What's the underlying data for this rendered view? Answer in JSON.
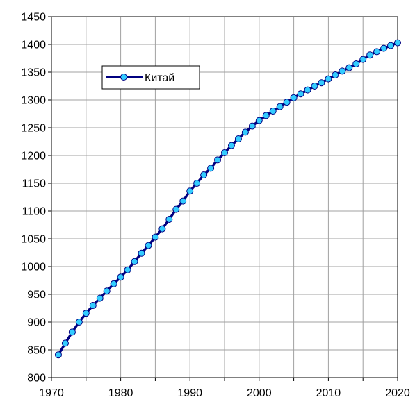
{
  "chart_data": {
    "type": "line",
    "title": "",
    "xlabel": "",
    "ylabel": "",
    "xlim": [
      1970,
      2020
    ],
    "ylim": [
      800,
      1450
    ],
    "x_ticks": [
      1970,
      1980,
      1990,
      2000,
      2010,
      2020
    ],
    "y_ticks": [
      800,
      850,
      900,
      950,
      1000,
      1050,
      1100,
      1150,
      1200,
      1250,
      1300,
      1350,
      1400,
      1450
    ],
    "grid": true,
    "legend_position": "upper-left",
    "series": [
      {
        "name": "Китай",
        "line_color": "#000080",
        "marker_color": "#33ccff",
        "x": [
          1971,
          1972,
          1973,
          1974,
          1975,
          1976,
          1977,
          1978,
          1979,
          1980,
          1981,
          1982,
          1983,
          1984,
          1985,
          1986,
          1987,
          1988,
          1989,
          1990,
          1991,
          1992,
          1993,
          1994,
          1995,
          1996,
          1997,
          1998,
          1999,
          2000,
          2001,
          2002,
          2003,
          2004,
          2005,
          2006,
          2007,
          2008,
          2009,
          2010,
          2011,
          2012,
          2013,
          2014,
          2015,
          2016,
          2017,
          2018,
          2019,
          2020
        ],
        "values": [
          841,
          862,
          882,
          900,
          916,
          930,
          943,
          956,
          969,
          981,
          994,
          1009,
          1024,
          1038,
          1053,
          1068,
          1085,
          1103,
          1118,
          1136,
          1150,
          1165,
          1177,
          1192,
          1205,
          1218,
          1230,
          1242,
          1253,
          1263,
          1272,
          1280,
          1288,
          1296,
          1304,
          1311,
          1318,
          1325,
          1331,
          1338,
          1345,
          1352,
          1358,
          1365,
          1373,
          1381,
          1387,
          1393,
          1398,
          1403
        ]
      }
    ]
  }
}
